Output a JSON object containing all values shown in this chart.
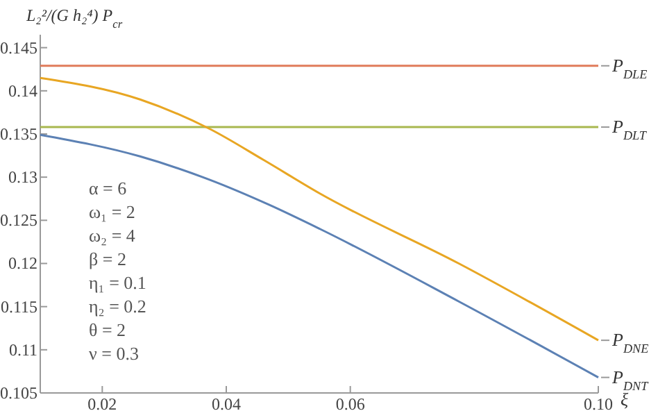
{
  "chart_data": {
    "type": "line",
    "ylabel": "L₂²/(G h₂⁴) P$_{cr}$",
    "xlabel": "ξ",
    "xlim": [
      0.01,
      0.1
    ],
    "ylim": [
      0.105,
      0.1465
    ],
    "xticks": [
      0.02,
      0.04,
      0.06,
      {
        "value": 0.1,
        "label": "0.10"
      }
    ],
    "yticks": [
      0.105,
      0.11,
      0.115,
      0.12,
      0.125,
      0.13,
      0.135,
      0.14,
      0.145
    ],
    "grid": false,
    "marker": "none",
    "line_style": "solid",
    "series": [
      {
        "name": "P$_{DLE}$",
        "color": "#e07b5a",
        "x": [
          0.01,
          0.1
        ],
        "values": [
          0.1429,
          0.1429
        ]
      },
      {
        "name": "P$_{DLT}$",
        "color": "#a8b84f",
        "x": [
          0.01,
          0.1
        ],
        "values": [
          0.1358,
          0.1358
        ]
      },
      {
        "name": "P$_{DNE}$",
        "color": "#e8a623",
        "x": [
          0.01,
          0.0261,
          0.0373,
          0.046,
          0.0551,
          0.0775,
          0.1
        ],
        "values": [
          0.1415,
          0.139,
          0.1356,
          0.132,
          0.1281,
          0.12,
          0.1111
        ]
      },
      {
        "name": "P$_{DNT}$",
        "color": "#5c81b4",
        "x": [
          0.01,
          0.0261,
          0.0373,
          0.0469,
          0.0551,
          0.0775,
          0.1
        ],
        "values": [
          0.1349,
          0.1324,
          0.1297,
          0.1268,
          0.124,
          0.1156,
          0.1068
        ]
      }
    ],
    "annotations": [
      "α = 6",
      "ω₁ = 2",
      "ω₂ = 4",
      "β = 2",
      "η₁ = 0.1",
      "η₂ = 0.2",
      "θ = 2",
      "ν = 0.3"
    ]
  }
}
